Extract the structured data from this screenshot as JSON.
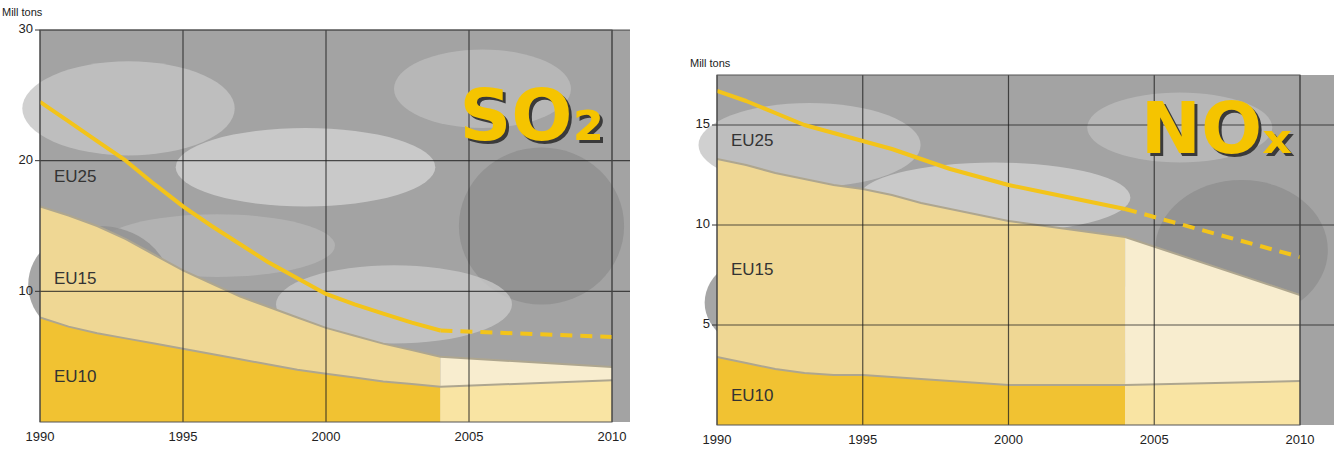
{
  "chart_data": [
    {
      "type": "area",
      "title": "SO₂",
      "y_label": "Mill tons",
      "x": [
        1990,
        1991,
        1992,
        1993,
        1994,
        1995,
        1996,
        1997,
        1998,
        1999,
        2000,
        2001,
        2002,
        2003,
        2004,
        2010
      ],
      "xlim": [
        1990,
        2010
      ],
      "xticks": [
        1990,
        1995,
        2000,
        2005,
        2010
      ],
      "ylim": [
        0,
        30
      ],
      "yticks": [
        10,
        20,
        30
      ],
      "grid": true,
      "stacked": false,
      "projection_start": 2004,
      "series": [
        {
          "name": "EU25",
          "type": "line",
          "color": "#f3c41a",
          "line_style": "solid",
          "values": [
            24.5,
            23.0,
            21.5,
            20.0,
            18.2,
            16.5,
            15.0,
            13.6,
            12.2,
            11.0,
            9.8,
            9.0,
            8.3,
            7.6,
            7.0,
            6.5
          ]
        },
        {
          "name": "EU15",
          "type": "area",
          "color": "#efd794",
          "values": [
            16.5,
            15.8,
            15.0,
            14.0,
            12.8,
            11.6,
            10.6,
            9.6,
            8.8,
            8.0,
            7.2,
            6.6,
            6.0,
            5.5,
            5.0,
            4.2
          ]
        },
        {
          "name": "EU10",
          "type": "area",
          "color": "#f1c232",
          "values": [
            8.0,
            7.3,
            6.8,
            6.4,
            6.0,
            5.6,
            5.2,
            4.8,
            4.4,
            4.0,
            3.7,
            3.4,
            3.1,
            2.9,
            2.7,
            3.2
          ]
        }
      ]
    },
    {
      "type": "area",
      "title": "NOₓ",
      "y_label": "Mill tons",
      "x": [
        1990,
        1991,
        1992,
        1993,
        1994,
        1995,
        1996,
        1997,
        1998,
        1999,
        2000,
        2001,
        2002,
        2003,
        2004,
        2010
      ],
      "xlim": [
        1990,
        2010
      ],
      "xticks": [
        1990,
        1995,
        2000,
        2005,
        2010
      ],
      "ylim": [
        0,
        17.5
      ],
      "yticks": [
        5,
        10,
        15
      ],
      "grid": true,
      "stacked": false,
      "projection_start": 2004,
      "series": [
        {
          "name": "EU25",
          "type": "line",
          "color": "#f3c41a",
          "line_style": "solid",
          "values": [
            16.7,
            16.2,
            15.6,
            15.0,
            14.6,
            14.2,
            13.8,
            13.3,
            12.8,
            12.4,
            12.0,
            11.7,
            11.4,
            11.1,
            10.8,
            8.4
          ]
        },
        {
          "name": "EU15",
          "type": "area",
          "color": "#efd794",
          "values": [
            13.3,
            13.0,
            12.6,
            12.3,
            12.0,
            11.8,
            11.5,
            11.1,
            10.8,
            10.5,
            10.2,
            10.0,
            9.8,
            9.6,
            9.4,
            6.5
          ]
        },
        {
          "name": "EU10",
          "type": "area",
          "color": "#f1c232",
          "values": [
            3.4,
            3.1,
            2.8,
            2.6,
            2.5,
            2.5,
            2.4,
            2.3,
            2.2,
            2.1,
            2.0,
            2.0,
            2.0,
            2.0,
            2.0,
            2.2
          ]
        }
      ]
    }
  ]
}
